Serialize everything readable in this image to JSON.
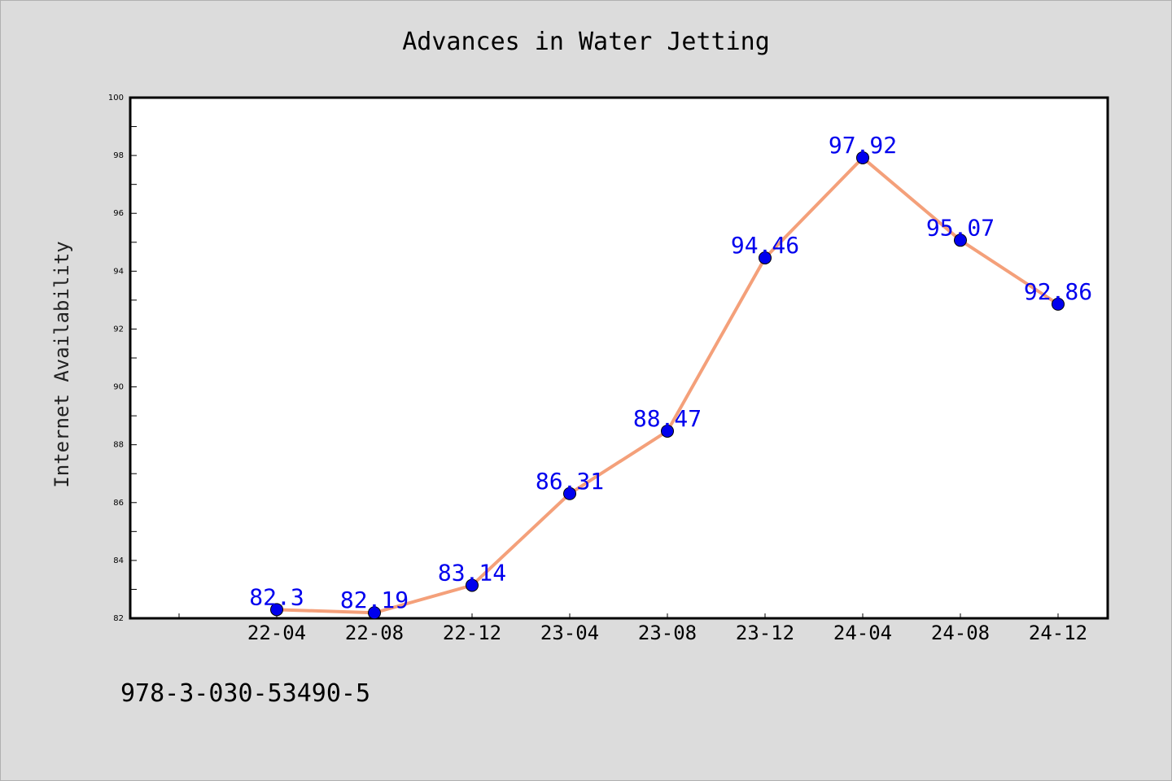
{
  "chart_data": {
    "type": "line",
    "title": "Advances in Water Jetting",
    "xlabel": "",
    "ylabel": "Internet Availability",
    "categories": [
      "22-04",
      "22-08",
      "22-12",
      "23-04",
      "23-08",
      "23-12",
      "24-04",
      "24-08",
      "24-12"
    ],
    "series": [
      {
        "values": [
          82.3,
          82.19,
          83.14,
          86.31,
          88.47,
          94.46,
          97.92,
          95.07,
          92.86
        ],
        "labels": [
          "82.3",
          "82.19",
          "83.14",
          "86.31",
          "88.47",
          "94.46",
          "97.92",
          "95.07",
          "92.86"
        ],
        "line_color": "#f4a07a",
        "marker_color": "#0000ee",
        "label_color": "#0000ee"
      }
    ],
    "ylim": [
      82,
      100
    ],
    "y_ticks": [
      "82",
      "84",
      "86",
      "88",
      "90",
      "92",
      "94",
      "96",
      "98",
      "100"
    ],
    "grid": false,
    "legend": "none"
  },
  "footer": {
    "code": "978-3-030-53490-5"
  },
  "colors": {
    "background": "#dcdcdc",
    "plot_background": "#ffffff",
    "axis": "#000000"
  }
}
